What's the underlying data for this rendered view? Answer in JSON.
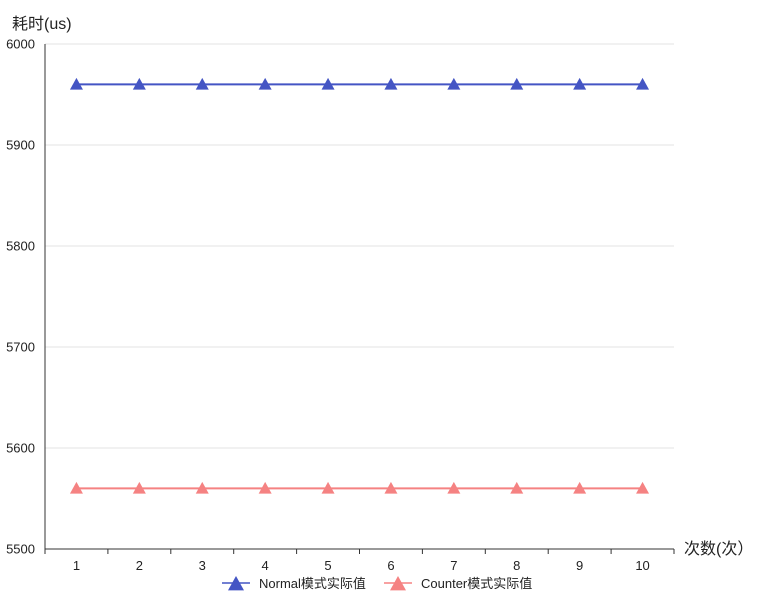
{
  "chart_data": {
    "type": "line",
    "ylabel": "耗时(us)",
    "xlabel": "次数(次）",
    "categories": [
      "1",
      "2",
      "3",
      "4",
      "5",
      "6",
      "7",
      "8",
      "9",
      "10"
    ],
    "ylim": [
      5500,
      6000
    ],
    "yticks": [
      "5500",
      "5600",
      "5700",
      "5800",
      "5900",
      "6000"
    ],
    "grid": true,
    "legend_position": "bottom",
    "series": [
      {
        "name": "Normal模式实际值",
        "color": "#4455c4",
        "marker": "triangle",
        "values": [
          5960,
          5960,
          5960,
          5960,
          5960,
          5960,
          5960,
          5960,
          5960,
          5960
        ]
      },
      {
        "name": "Counter模式实际值",
        "color": "#f58282",
        "marker": "triangle",
        "values": [
          5560,
          5560,
          5560,
          5560,
          5560,
          5560,
          5560,
          5560,
          5560,
          5560
        ]
      }
    ]
  }
}
